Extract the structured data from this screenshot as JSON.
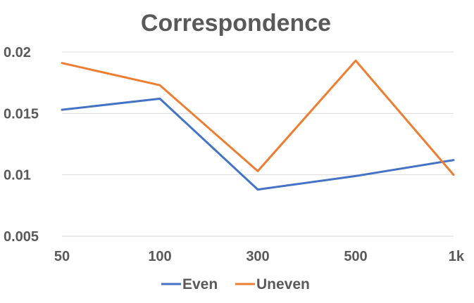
{
  "chart_data": {
    "type": "line",
    "title": "Correspondence",
    "categories": [
      "50",
      "100",
      "300",
      "500",
      "1k"
    ],
    "ylim": [
      0.005,
      0.02
    ],
    "yticks": [
      0.005,
      0.01,
      0.015,
      0.02
    ],
    "ytick_labels": [
      "0.005",
      "0.01",
      "0.015",
      "0.02"
    ],
    "grid": true,
    "legend_position": "bottom",
    "series": [
      {
        "name": "Even",
        "color": "#4472C4",
        "values": [
          0.0153,
          0.0162,
          0.0088,
          0.0099,
          0.0112
        ]
      },
      {
        "name": "Uneven",
        "color": "#ED7D31",
        "values": [
          0.0191,
          0.0173,
          0.0103,
          0.0193,
          0.01
        ]
      }
    ]
  }
}
